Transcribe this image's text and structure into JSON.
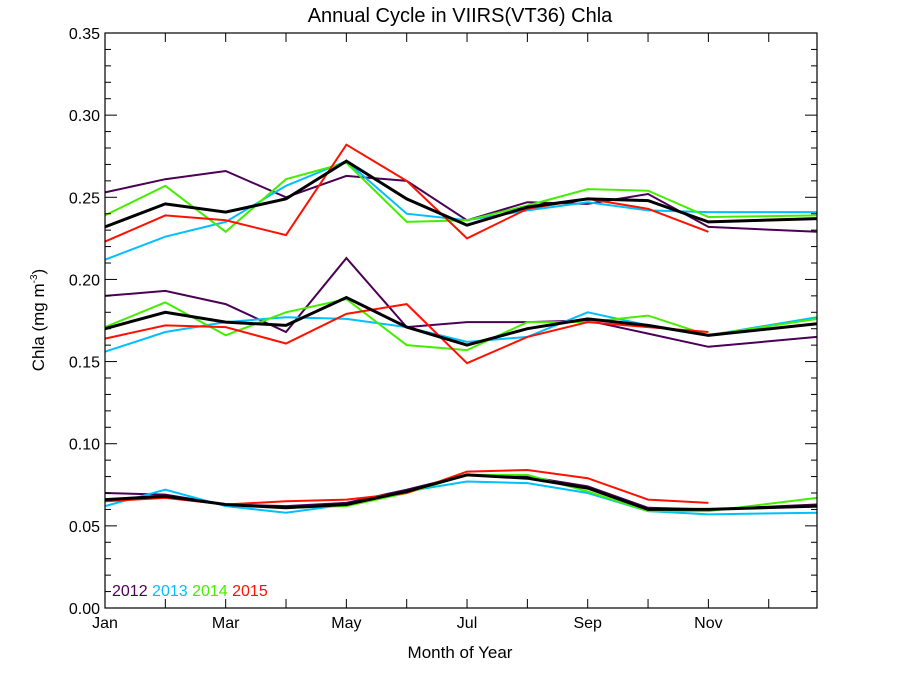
{
  "chart_data": {
    "type": "line",
    "title": "Annual Cycle in VIIRS(VT36) Chla",
    "xlabel": "Month of Year",
    "ylabel": "Chla (mg m",
    "ylabel_sup": "-3",
    "ylabel_close": ")",
    "xlim": [
      1,
      12.8
    ],
    "ylim": [
      0,
      0.35
    ],
    "x_ticks": [
      {
        "x": 1,
        "label": "Jan"
      },
      {
        "x": 3,
        "label": "Mar"
      },
      {
        "x": 5,
        "label": "May"
      },
      {
        "x": 7,
        "label": "Jul"
      },
      {
        "x": 9,
        "label": "Sep"
      },
      {
        "x": 11,
        "label": "Nov"
      }
    ],
    "y_ticks": [
      {
        "y": 0.0,
        "label": "0.00"
      },
      {
        "y": 0.05,
        "label": "0.05"
      },
      {
        "y": 0.1,
        "label": "0.10"
      },
      {
        "y": 0.15,
        "label": "0.15"
      },
      {
        "y": 0.2,
        "label": "0.20"
      },
      {
        "y": 0.25,
        "label": "0.25"
      },
      {
        "y": 0.3,
        "label": "0.30"
      },
      {
        "y": 0.35,
        "label": "0.35"
      }
    ],
    "legend": {
      "placement": "bottom-left",
      "entries": [
        {
          "label": "2012",
          "color": "#4b0055"
        },
        {
          "label": "2013",
          "color": "#00bfff"
        },
        {
          "label": "2014",
          "color": "#44ee00"
        },
        {
          "label": "2015",
          "color": "#ff1100"
        }
      ]
    },
    "series": [
      {
        "group": "upper",
        "legend_label": "2012",
        "color": "#4b0055",
        "width": 2,
        "x": [
          1,
          2,
          3,
          4,
          5,
          6,
          7,
          8,
          9,
          10,
          11,
          12.8
        ],
        "y": [
          0.253,
          0.261,
          0.266,
          0.25,
          0.263,
          0.26,
          0.236,
          0.247,
          0.246,
          0.252,
          0.232,
          0.229
        ]
      },
      {
        "group": "upper",
        "legend_label": "2013",
        "color": "#00bfff",
        "width": 2,
        "x": [
          1,
          2,
          3,
          4,
          5,
          6,
          7,
          8,
          9,
          10,
          11,
          12.8
        ],
        "y": [
          0.212,
          0.226,
          0.235,
          0.257,
          0.272,
          0.24,
          0.236,
          0.242,
          0.247,
          0.242,
          0.241,
          0.241
        ]
      },
      {
        "group": "upper",
        "legend_label": "2014",
        "color": "#44ee00",
        "width": 2,
        "x": [
          1,
          2,
          3,
          4,
          5,
          6,
          7,
          8,
          9,
          10,
          11,
          12.8
        ],
        "y": [
          0.239,
          0.257,
          0.229,
          0.261,
          0.271,
          0.235,
          0.236,
          0.245,
          0.255,
          0.254,
          0.238,
          0.239
        ]
      },
      {
        "group": "upper",
        "legend_label": "2015",
        "color": "#ff1100",
        "width": 2,
        "x": [
          1,
          2,
          3,
          4,
          5,
          6,
          7,
          8,
          9,
          10,
          11
        ],
        "y": [
          0.223,
          0.239,
          0.236,
          0.227,
          0.282,
          0.26,
          0.225,
          0.243,
          0.249,
          0.243,
          0.229
        ]
      },
      {
        "group": "upper",
        "legend_label": "",
        "color": "#000000",
        "width": 3,
        "x": [
          1,
          2,
          3,
          4,
          5,
          6,
          7,
          8,
          9,
          10,
          11,
          12.8
        ],
        "y": [
          0.232,
          0.246,
          0.241,
          0.249,
          0.272,
          0.249,
          0.233,
          0.244,
          0.249,
          0.248,
          0.235,
          0.237
        ]
      },
      {
        "group": "middle",
        "legend_label": "2012",
        "color": "#4b0055",
        "width": 2,
        "x": [
          1,
          2,
          3,
          4,
          5,
          6,
          7,
          8,
          9,
          10,
          11,
          12.8
        ],
        "y": [
          0.19,
          0.193,
          0.185,
          0.168,
          0.213,
          0.171,
          0.174,
          0.174,
          0.175,
          0.167,
          0.159,
          0.165
        ]
      },
      {
        "group": "middle",
        "legend_label": "2013",
        "color": "#00bfff",
        "width": 2,
        "x": [
          1,
          2,
          3,
          4,
          5,
          6,
          7,
          8,
          9,
          10,
          11,
          12.8
        ],
        "y": [
          0.156,
          0.168,
          0.174,
          0.177,
          0.176,
          0.171,
          0.162,
          0.165,
          0.18,
          0.172,
          0.166,
          0.177
        ]
      },
      {
        "group": "middle",
        "legend_label": "2014",
        "color": "#44ee00",
        "width": 2,
        "x": [
          1,
          2,
          3,
          4,
          5,
          6,
          7,
          8,
          9,
          10,
          11,
          12.8
        ],
        "y": [
          0.171,
          0.186,
          0.166,
          0.18,
          0.188,
          0.16,
          0.157,
          0.174,
          0.174,
          0.178,
          0.166,
          0.176
        ]
      },
      {
        "group": "middle",
        "legend_label": "2015",
        "color": "#ff1100",
        "width": 2,
        "x": [
          1,
          2,
          3,
          4,
          5,
          6,
          7,
          8,
          9,
          10,
          11
        ],
        "y": [
          0.164,
          0.172,
          0.171,
          0.161,
          0.179,
          0.185,
          0.149,
          0.165,
          0.174,
          0.171,
          0.168
        ]
      },
      {
        "group": "middle",
        "legend_label": "",
        "color": "#000000",
        "width": 3,
        "x": [
          1,
          2,
          3,
          4,
          5,
          6,
          7,
          8,
          9,
          10,
          11,
          12.8
        ],
        "y": [
          0.17,
          0.18,
          0.174,
          0.172,
          0.189,
          0.171,
          0.16,
          0.17,
          0.176,
          0.172,
          0.166,
          0.173
        ]
      },
      {
        "group": "lower",
        "legend_label": "2012",
        "color": "#4b0055",
        "width": 2,
        "x": [
          1,
          2,
          3,
          4,
          5,
          6,
          7,
          8,
          9,
          10,
          11,
          12.8
        ],
        "y": [
          0.07,
          0.069,
          0.063,
          0.062,
          0.064,
          0.072,
          0.081,
          0.08,
          0.074,
          0.061,
          0.06,
          0.063
        ]
      },
      {
        "group": "lower",
        "legend_label": "2013",
        "color": "#00bfff",
        "width": 2,
        "x": [
          1,
          2,
          3,
          4,
          5,
          6,
          7,
          8,
          9,
          10,
          11,
          12.8
        ],
        "y": [
          0.062,
          0.072,
          0.062,
          0.058,
          0.063,
          0.071,
          0.077,
          0.076,
          0.07,
          0.059,
          0.057,
          0.058
        ]
      },
      {
        "group": "lower",
        "legend_label": "2014",
        "color": "#44ee00",
        "width": 2,
        "x": [
          1,
          2,
          3,
          4,
          5,
          6,
          7,
          8,
          9,
          10,
          11,
          12.8
        ],
        "y": [
          0.065,
          0.068,
          0.063,
          0.061,
          0.062,
          0.07,
          0.081,
          0.081,
          0.071,
          0.059,
          0.059,
          0.067
        ]
      },
      {
        "group": "lower",
        "legend_label": "2015",
        "color": "#ff1100",
        "width": 2,
        "x": [
          1,
          2,
          3,
          4,
          5,
          6,
          7,
          8,
          9,
          10,
          11
        ],
        "y": [
          0.065,
          0.067,
          0.063,
          0.065,
          0.066,
          0.07,
          0.083,
          0.084,
          0.079,
          0.066,
          0.064
        ]
      },
      {
        "group": "lower",
        "legend_label": "",
        "color": "#000000",
        "width": 3,
        "x": [
          1,
          2,
          3,
          4,
          5,
          6,
          7,
          8,
          9,
          10,
          11,
          12.8
        ],
        "y": [
          0.066,
          0.068,
          0.063,
          0.061,
          0.063,
          0.071,
          0.081,
          0.079,
          0.073,
          0.06,
          0.06,
          0.062
        ]
      }
    ]
  }
}
